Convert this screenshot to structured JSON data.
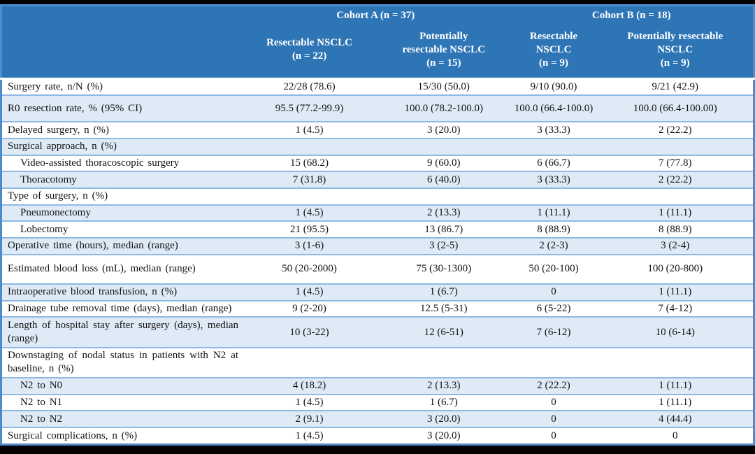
{
  "colors": {
    "header_bg": "#2E75B6",
    "header_text": "#FFFFFF",
    "stripe": "#DEEAF6",
    "row_border": "#8FB9E3",
    "outer_border": "#4E8BC8",
    "body_text": "#131313",
    "frame": "#000000"
  },
  "table": {
    "header": {
      "cohorts": [
        {
          "label": "Cohort A (n = 37)"
        },
        {
          "label": "Cohort B (n = 18)"
        }
      ],
      "columns": [
        {
          "label": "Resectable NSCLC\n(n = 22)"
        },
        {
          "label": "Potentially\nresectable NSCLC\n(n = 15)"
        },
        {
          "label": "Resectable NSCLC\n(n = 9)"
        },
        {
          "label": "Potentially resectable\nNSCLC\n(n = 9)"
        }
      ]
    },
    "rows": [
      {
        "label": "Surgery rate, n/N (%)",
        "level": 0,
        "values": [
          "22/28 (78.6)",
          "15/30 (50.0)",
          "9/10 (90.0)",
          "9/21 (42.9)"
        ]
      },
      {
        "label": "R0 resection rate, % (95% CI)",
        "level": 0,
        "values": [
          "95.5 (77.2-99.9)",
          "100.0 (78.2-100.0)",
          "100.0 (66.4-100.0)",
          "100.0 (66.4-100.00)"
        ]
      },
      {
        "label": "Delayed surgery, n (%)",
        "level": 0,
        "values": [
          "1 (4.5)",
          "3 (20.0)",
          "3 (33.3)",
          "2 (22.2)"
        ]
      },
      {
        "label": "Surgical approach, n (%)",
        "level": 0,
        "values": [
          "",
          "",
          "",
          ""
        ]
      },
      {
        "label": "Video-assisted thoracoscopic surgery",
        "level": 1,
        "values": [
          "15 (68.2)",
          "9 (60.0)",
          "6 (66.7)",
          "7 (77.8)"
        ]
      },
      {
        "label": "Thoracotomy",
        "level": 1,
        "values": [
          "7 (31.8)",
          "6 (40.0)",
          "3 (33.3)",
          "2 (22.2)"
        ]
      },
      {
        "label": "Type of surgery, n (%)",
        "level": 0,
        "values": [
          "",
          "",
          "",
          ""
        ]
      },
      {
        "label": "Pneumonectomy",
        "level": 1,
        "values": [
          "1 (4.5)",
          "2 (13.3)",
          "1 (11.1)",
          "1 (11.1)"
        ]
      },
      {
        "label": "Lobectomy",
        "level": 1,
        "values": [
          "21 (95.5)",
          "13 (86.7)",
          "8 (88.9)",
          "8 (88.9)"
        ]
      },
      {
        "label": "Operative time (hours), median (range)",
        "level": 0,
        "values": [
          "3 (1-6)",
          "3 (2-5)",
          "2 (2-3)",
          "3 (2-4)"
        ]
      },
      {
        "label": "Estimated blood loss (mL), median (range)",
        "level": 0,
        "values": [
          "50 (20-2000)",
          "75 (30-1300)",
          "50 (20-100)",
          "100 (20-800)"
        ]
      },
      {
        "label": "Intraoperative blood transfusion, n (%)",
        "level": 0,
        "values": [
          "1 (4.5)",
          "1 (6.7)",
          "0",
          "1 (11.1)"
        ]
      },
      {
        "label": "Drainage tube removal time (days), median (range)",
        "level": 0,
        "values": [
          "9 (2-20)",
          "12.5 (5-31)",
          "6 (5-22)",
          "7 (4-12)"
        ]
      },
      {
        "label": "Length of hospital stay after surgery (days), median (range)",
        "level": 0,
        "values": [
          "10 (3-22)",
          "12 (6-51)",
          "7 (6-12)",
          "10 (6-14)"
        ]
      },
      {
        "label": "Downstaging of nodal status in patients with N2 at baseline, n (%)",
        "level": 0,
        "values": [
          "",
          "",
          "",
          ""
        ]
      },
      {
        "label": "N2 to N0",
        "level": 1,
        "values": [
          "4 (18.2)",
          "2 (13.3)",
          "2 (22.2)",
          "1 (11.1)"
        ]
      },
      {
        "label": "N2 to N1",
        "level": 1,
        "values": [
          "1 (4.5)",
          "1 (6.7)",
          "0",
          "1 (11.1)"
        ]
      },
      {
        "label": "N2 to N2",
        "level": 1,
        "values": [
          "2 (9.1)",
          "3 (20.0)",
          "0",
          "4 (44.4)"
        ]
      },
      {
        "label": "Surgical complications, n (%)",
        "level": 0,
        "values": [
          "1 (4.5)",
          "3 (20.0)",
          "0",
          "0"
        ]
      }
    ]
  }
}
